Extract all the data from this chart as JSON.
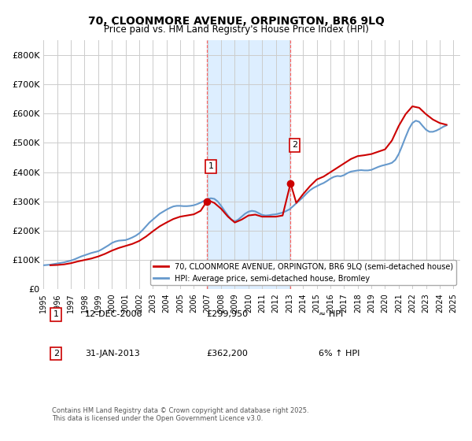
{
  "title": "70, CLOONMORE AVENUE, ORPINGTON, BR6 9LQ",
  "subtitle": "Price paid vs. HM Land Registry's House Price Index (HPI)",
  "ylabel": "",
  "ylim": [
    0,
    850000
  ],
  "yticks": [
    0,
    100000,
    200000,
    300000,
    400000,
    500000,
    600000,
    700000,
    800000
  ],
  "ytick_labels": [
    "£0",
    "£100K",
    "£200K",
    "£300K",
    "£400K",
    "£500K",
    "£600K",
    "£700K",
    "£800K"
  ],
  "sale1_date": 2006.95,
  "sale1_price": 299950,
  "sale1_label": "1",
  "sale2_date": 2013.08,
  "sale2_price": 362200,
  "sale2_label": "2",
  "shaded_start": 2006.95,
  "shaded_end": 2013.08,
  "red_line_color": "#cc0000",
  "blue_line_color": "#6699cc",
  "shade_color": "#ddeeff",
  "marker_color": "#cc0000",
  "grid_color": "#cccccc",
  "background_color": "#ffffff",
  "legend1_text": "70, CLOONMORE AVENUE, ORPINGTON, BR6 9LQ (semi-detached house)",
  "legend2_text": "HPI: Average price, semi-detached house, Bromley",
  "sale_info": [
    {
      "num": "1",
      "date": "12-DEC-2006",
      "price": "£299,950",
      "hpi": "≈ HPI"
    },
    {
      "num": "2",
      "date": "31-JAN-2013",
      "price": "£362,200",
      "hpi": "6% ↑ HPI"
    }
  ],
  "footer": "Contains HM Land Registry data © Crown copyright and database right 2025.\nThis data is licensed under the Open Government Licence v3.0.",
  "hpi_data_x": [
    1995,
    1995.25,
    1995.5,
    1995.75,
    1996,
    1996.25,
    1996.5,
    1996.75,
    1997,
    1997.25,
    1997.5,
    1997.75,
    1998,
    1998.25,
    1998.5,
    1998.75,
    1999,
    1999.25,
    1999.5,
    1999.75,
    2000,
    2000.25,
    2000.5,
    2000.75,
    2001,
    2001.25,
    2001.5,
    2001.75,
    2002,
    2002.25,
    2002.5,
    2002.75,
    2003,
    2003.25,
    2003.5,
    2003.75,
    2004,
    2004.25,
    2004.5,
    2004.75,
    2005,
    2005.25,
    2005.5,
    2005.75,
    2006,
    2006.25,
    2006.5,
    2006.75,
    2007,
    2007.25,
    2007.5,
    2007.75,
    2008,
    2008.25,
    2008.5,
    2008.75,
    2009,
    2009.25,
    2009.5,
    2009.75,
    2010,
    2010.25,
    2010.5,
    2010.75,
    2011,
    2011.25,
    2011.5,
    2011.75,
    2012,
    2012.25,
    2012.5,
    2012.75,
    2013,
    2013.25,
    2013.5,
    2013.75,
    2014,
    2014.25,
    2014.5,
    2014.75,
    2015,
    2015.25,
    2015.5,
    2015.75,
    2016,
    2016.25,
    2016.5,
    2016.75,
    2017,
    2017.25,
    2017.5,
    2017.75,
    2018,
    2018.25,
    2018.5,
    2018.75,
    2019,
    2019.25,
    2019.5,
    2019.75,
    2020,
    2020.25,
    2020.5,
    2020.75,
    2021,
    2021.25,
    2021.5,
    2021.75,
    2022,
    2022.25,
    2022.5,
    2022.75,
    2023,
    2023.25,
    2023.5,
    2023.75,
    2024,
    2024.25,
    2024.5
  ],
  "hpi_data_y": [
    82000,
    83000,
    84000,
    86000,
    88000,
    90000,
    92000,
    95000,
    98000,
    102000,
    107000,
    112000,
    116000,
    120000,
    124000,
    127000,
    130000,
    136000,
    143000,
    150000,
    158000,
    163000,
    166000,
    167000,
    168000,
    172000,
    177000,
    183000,
    191000,
    202000,
    215000,
    228000,
    238000,
    248000,
    258000,
    265000,
    272000,
    278000,
    283000,
    285000,
    285000,
    284000,
    284000,
    285000,
    287000,
    291000,
    296000,
    302000,
    308000,
    311000,
    309000,
    300000,
    285000,
    268000,
    252000,
    238000,
    232000,
    238000,
    248000,
    258000,
    265000,
    268000,
    266000,
    260000,
    254000,
    252000,
    253000,
    255000,
    256000,
    259000,
    262000,
    267000,
    273000,
    283000,
    294000,
    304000,
    315000,
    327000,
    338000,
    346000,
    352000,
    358000,
    363000,
    370000,
    378000,
    384000,
    387000,
    386000,
    390000,
    397000,
    402000,
    404000,
    406000,
    407000,
    406000,
    406000,
    408000,
    413000,
    418000,
    422000,
    425000,
    428000,
    432000,
    442000,
    462000,
    490000,
    520000,
    548000,
    568000,
    576000,
    572000,
    558000,
    545000,
    538000,
    538000,
    542000,
    548000,
    555000,
    560000
  ],
  "price_data_x": [
    1995.5,
    1996.0,
    1996.5,
    1997.0,
    1997.5,
    1998.0,
    1998.5,
    1999.0,
    1999.5,
    2000.0,
    2000.5,
    2001.0,
    2001.5,
    2002.0,
    2002.5,
    2003.0,
    2003.5,
    2004.0,
    2004.5,
    2005.0,
    2005.5,
    2006.0,
    2006.5,
    2006.95,
    2007.0,
    2007.5,
    2008.0,
    2008.5,
    2009.0,
    2009.5,
    2010.0,
    2010.5,
    2011.0,
    2011.5,
    2012.0,
    2012.5,
    2013.08,
    2013.5,
    2014.0,
    2014.5,
    2015.0,
    2015.5,
    2016.0,
    2016.5,
    2017.0,
    2017.5,
    2018.0,
    2018.5,
    2019.0,
    2019.5,
    2020.0,
    2020.5,
    2021.0,
    2021.5,
    2022.0,
    2022.5,
    2023.0,
    2023.5,
    2024.0,
    2024.5
  ],
  "price_data_y": [
    82000,
    83000,
    85000,
    89000,
    95000,
    100000,
    105000,
    112000,
    121000,
    132000,
    141000,
    148000,
    155000,
    165000,
    180000,
    198000,
    215000,
    228000,
    240000,
    248000,
    252000,
    256000,
    268000,
    299950,
    305000,
    295000,
    275000,
    248000,
    228000,
    238000,
    252000,
    255000,
    248000,
    248000,
    248000,
    252000,
    362200,
    295000,
    325000,
    352000,
    375000,
    385000,
    400000,
    415000,
    430000,
    445000,
    455000,
    458000,
    462000,
    470000,
    478000,
    508000,
    558000,
    598000,
    625000,
    620000,
    598000,
    580000,
    568000,
    562000
  ],
  "xlim_start": 1995,
  "xlim_end": 2025.5,
  "xtick_years": [
    1995,
    1996,
    1997,
    1998,
    1999,
    2000,
    2001,
    2002,
    2003,
    2004,
    2005,
    2006,
    2007,
    2008,
    2009,
    2010,
    2011,
    2012,
    2013,
    2014,
    2015,
    2016,
    2017,
    2018,
    2019,
    2020,
    2021,
    2022,
    2023,
    2024,
    2025
  ]
}
